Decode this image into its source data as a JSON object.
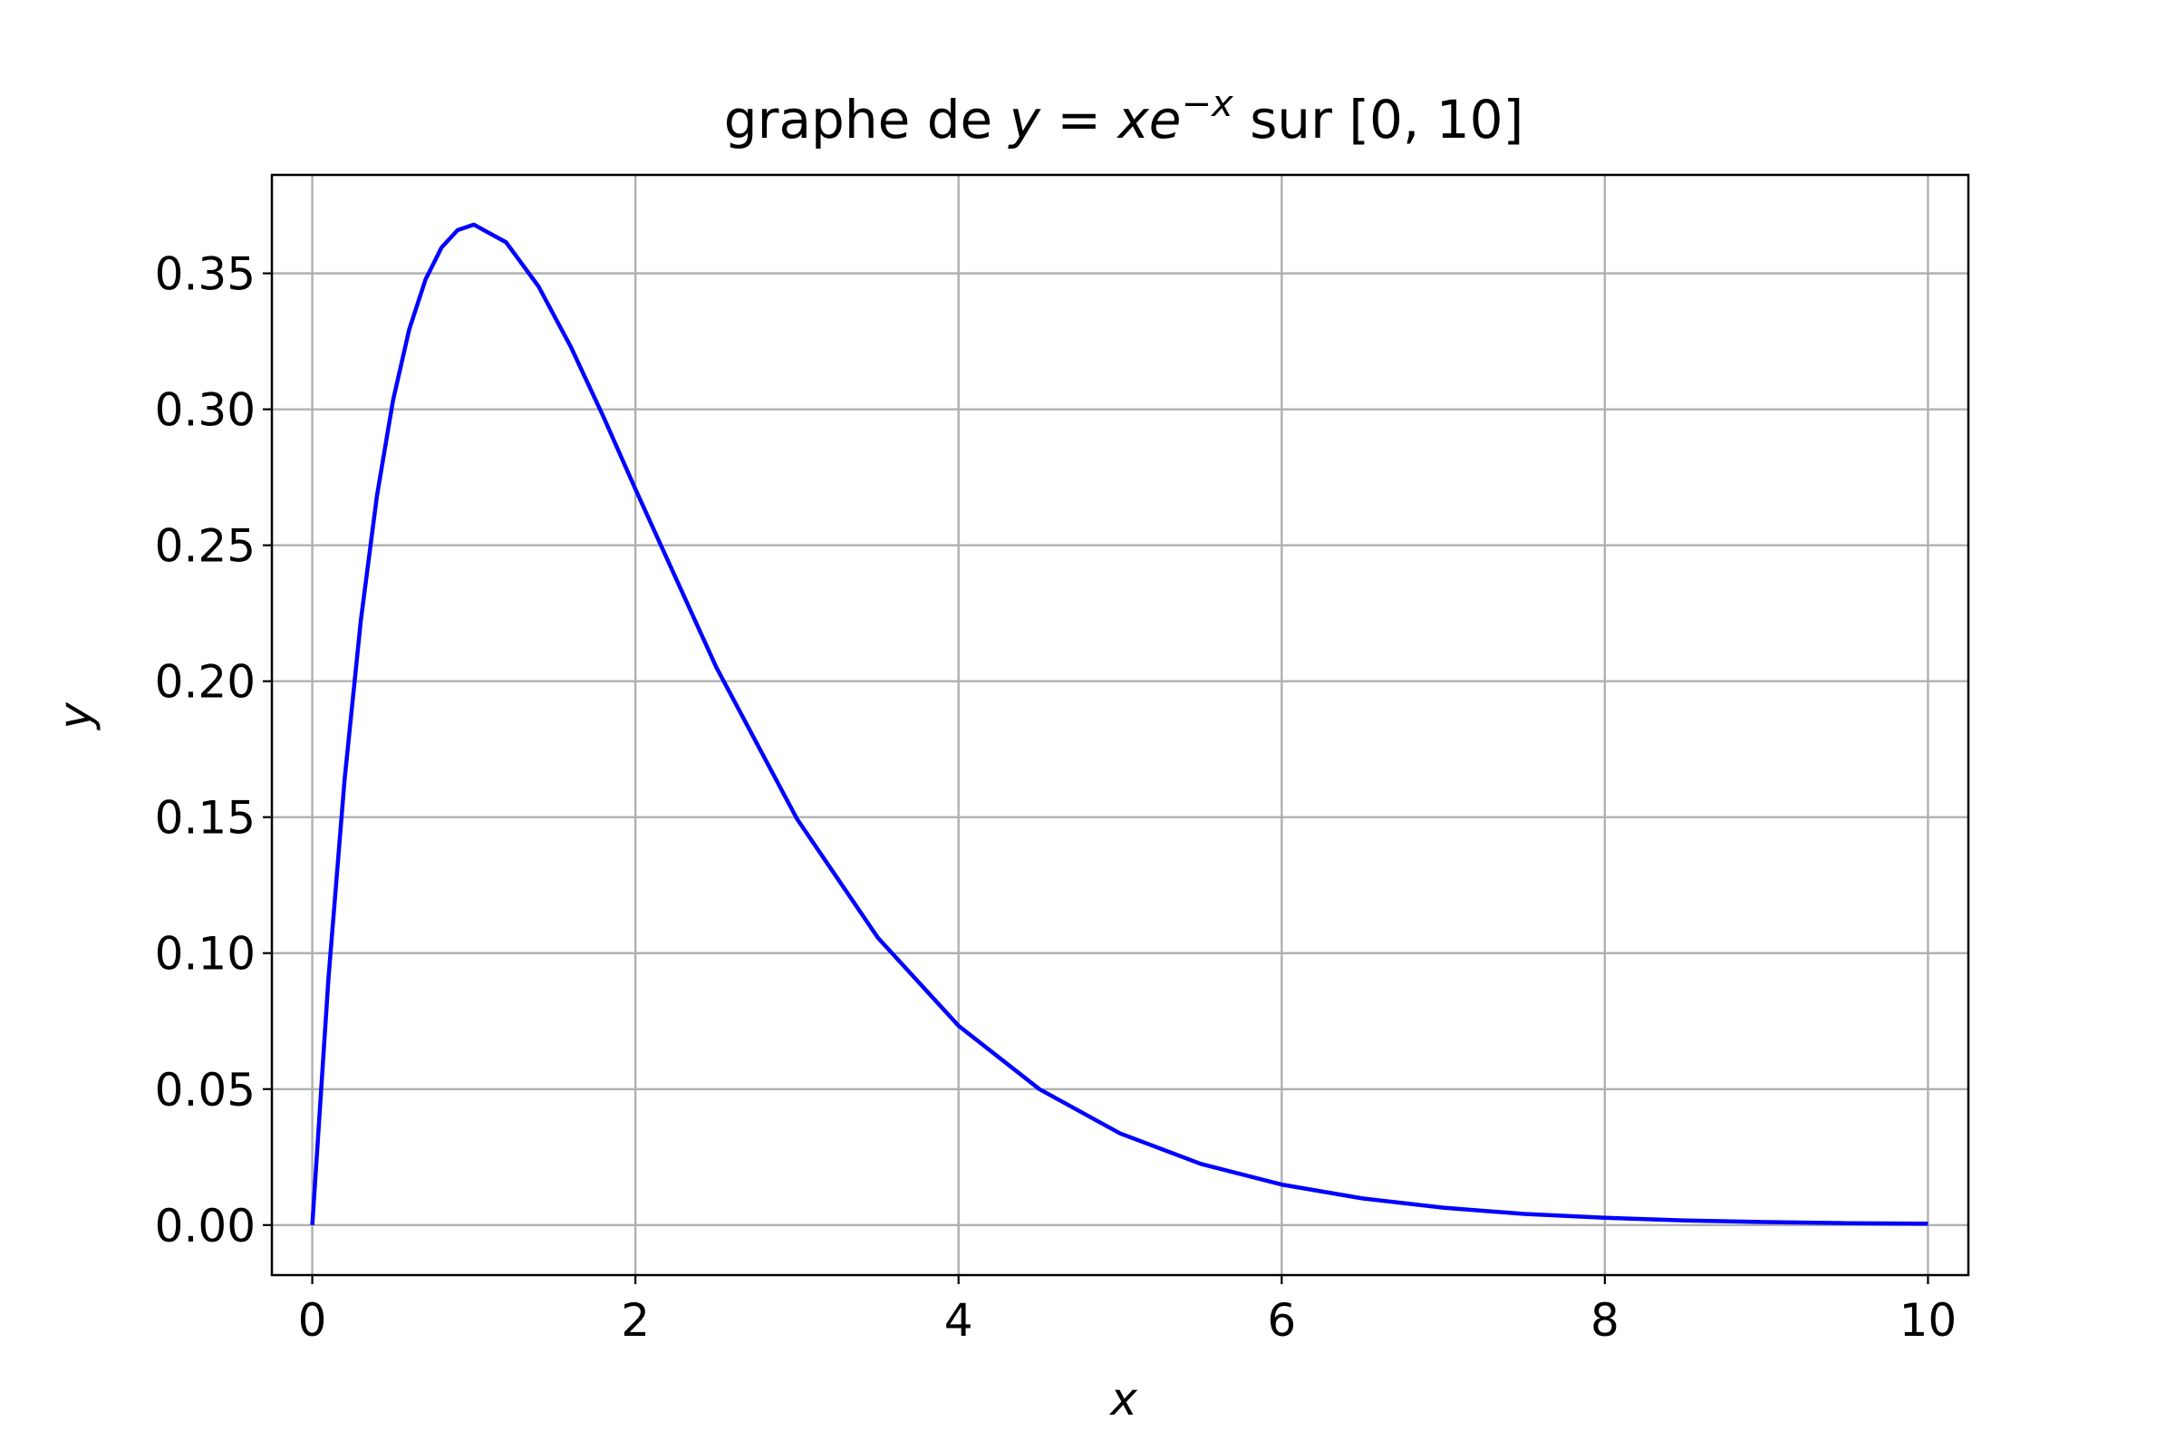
{
  "chart_data": {
    "type": "line",
    "title_parts": {
      "prefix": "graphe de ",
      "y": "y",
      "eq": " = ",
      "x": "x",
      "e": "e",
      "exp": "−x",
      "suffix_sur": " sur ",
      "interval": "[0, 10]"
    },
    "xlabel": "x",
    "ylabel": "y",
    "xlim": [
      -0.25,
      10.25
    ],
    "ylim": [
      -0.0184,
      0.3862
    ],
    "xticks": [
      0,
      2,
      4,
      6,
      8,
      10
    ],
    "xtick_labels": [
      "0",
      "2",
      "4",
      "6",
      "8",
      "10"
    ],
    "yticks": [
      0.0,
      0.05,
      0.1,
      0.15,
      0.2,
      0.25,
      0.3,
      0.35
    ],
    "ytick_labels": [
      "0.00",
      "0.05",
      "0.10",
      "0.15",
      "0.20",
      "0.25",
      "0.30",
      "0.35"
    ],
    "grid": true,
    "series": [
      {
        "color": "#0000ff",
        "x": [
          0,
          0.1,
          0.2,
          0.3,
          0.4,
          0.5,
          0.6,
          0.7,
          0.8,
          0.9,
          1.0,
          1.2,
          1.4,
          1.6,
          1.8,
          2.0,
          2.5,
          3.0,
          3.5,
          4.0,
          4.5,
          5.0,
          5.5,
          6.0,
          6.5,
          7.0,
          7.5,
          8.0,
          8.5,
          9.0,
          9.5,
          10.0
        ],
        "y": [
          0.0,
          0.0905,
          0.1637,
          0.2222,
          0.2681,
          0.3033,
          0.3293,
          0.3476,
          0.3595,
          0.3659,
          0.3679,
          0.3614,
          0.3452,
          0.323,
          0.2975,
          0.2707,
          0.2052,
          0.1494,
          0.1057,
          0.0733,
          0.05,
          0.0337,
          0.0225,
          0.0149,
          0.0098,
          0.0064,
          0.0041,
          0.0027,
          0.0017,
          0.0011,
          0.0007,
          0.0005
        ]
      }
    ]
  }
}
